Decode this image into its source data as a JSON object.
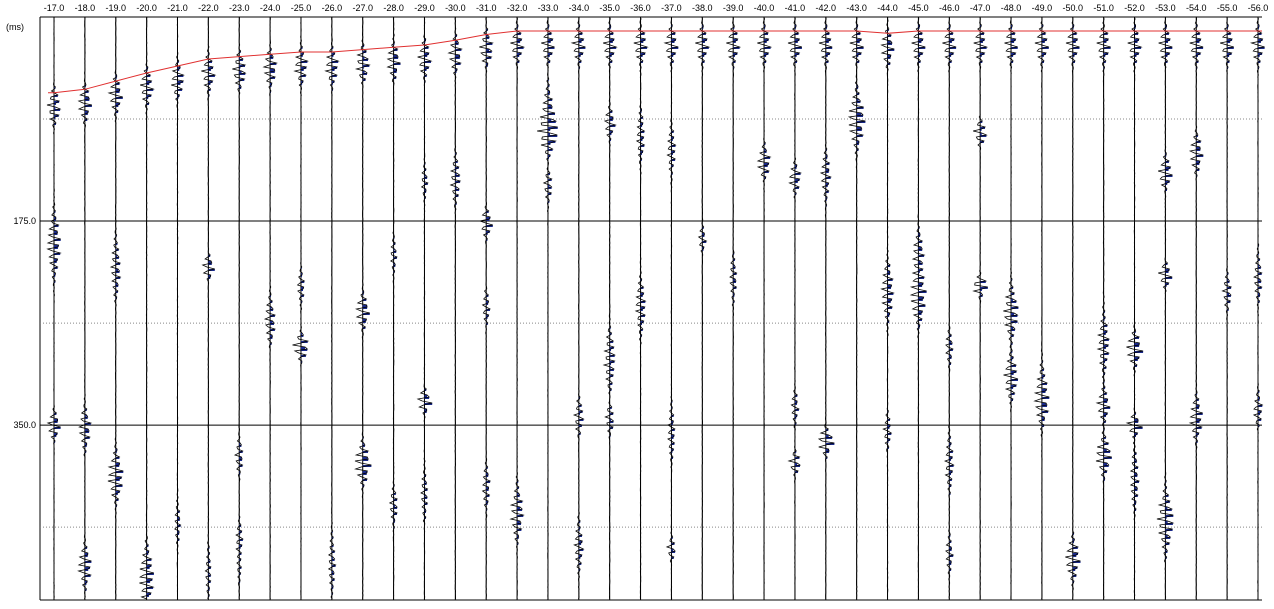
{
  "chart_data": {
    "type": "seismic-wiggle",
    "y_unit_label": "(ms)",
    "y_ticks": [
      175.0,
      350.0
    ],
    "y_tick_labels": [
      "175.0",
      "350.0"
    ],
    "ylim": [
      0,
      500
    ],
    "grid_dotted_y": [
      87.5,
      262.5,
      437.5
    ],
    "x_tick_labels": [
      "-17.0",
      "-18.0",
      "-19.0",
      "-20.0",
      "-21.0",
      "-22.0",
      "-23.0",
      "-24.0",
      "-25.0",
      "-26.0",
      "-27.0",
      "-28.0",
      "-29.0",
      "-30.0",
      "-31.0",
      "-32.0",
      "-33.0",
      "-34.0",
      "-35.0",
      "-36.0",
      "-37.0",
      "-38.0",
      "-39.0",
      "-40.0",
      "-41.0",
      "-42.0",
      "-43.0",
      "-44.0",
      "-45.0",
      "-46.0",
      "-47.0",
      "-48.0",
      "-49.0",
      "-50.0",
      "-51.0",
      "-52.0",
      "-53.0",
      "-54.0",
      "-55.0",
      "-56.0"
    ],
    "first_break_ms": [
      65,
      62,
      55,
      48,
      42,
      36,
      34,
      32,
      30,
      30,
      28,
      26,
      24,
      20,
      15,
      12,
      12,
      12,
      12,
      12,
      12,
      12,
      12,
      12,
      12,
      12,
      12,
      14,
      12,
      12,
      12,
      12,
      12,
      12,
      12,
      12,
      12,
      12,
      12,
      12
    ],
    "colors": {
      "trace": "#000000",
      "fill": "#1a2a8c",
      "pick_line": "#e03030",
      "grid": "#000000",
      "grid_dotted": "#888888"
    }
  }
}
